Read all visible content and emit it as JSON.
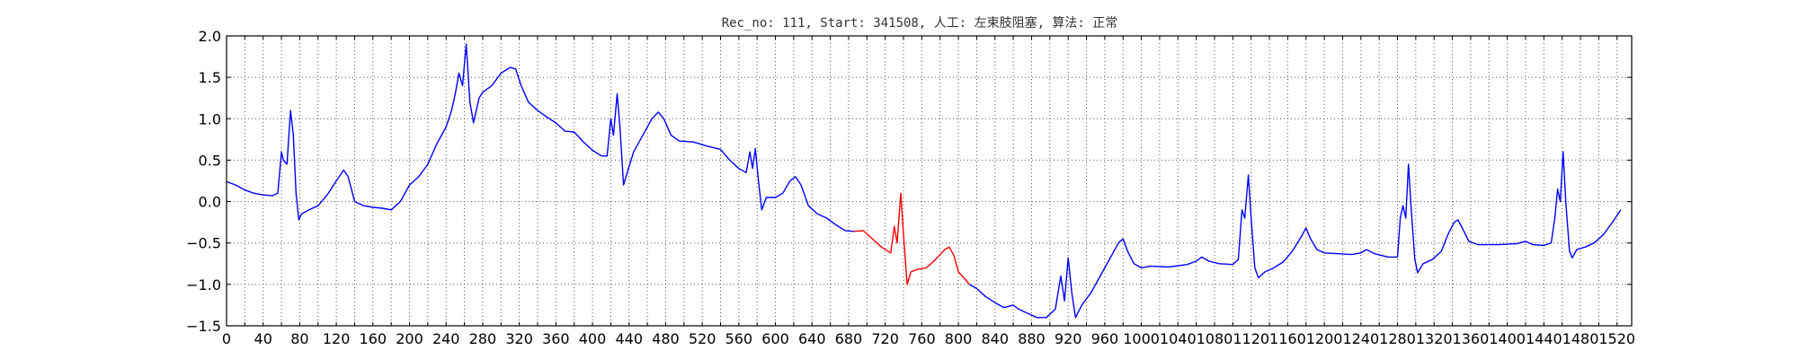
{
  "chart_data": {
    "type": "line",
    "title": "Rec_no: 111, Start: 341508, 人工: 左束肢阻塞, 算法: 正常",
    "xlabel": "",
    "ylabel": "",
    "xlim": [
      0,
      1536
    ],
    "ylim": [
      -1.5,
      2.0
    ],
    "grid": true,
    "x_tick_step": 20,
    "x_tick_label_every": 2,
    "y_ticks": [
      -1.5,
      -1.0,
      -0.5,
      0.0,
      0.5,
      1.0,
      1.5,
      2.0
    ],
    "y_tick_labels": [
      "−1.5",
      "−1.0",
      "−0.5",
      "0.0",
      "0.5",
      "1.0",
      "1.5",
      "2.0"
    ],
    "series": [
      {
        "color": "#0000ff",
        "points": [
          [
            0,
            0.24
          ],
          [
            10,
            0.2
          ],
          [
            20,
            0.14
          ],
          [
            30,
            0.1
          ],
          [
            40,
            0.08
          ],
          [
            50,
            0.07
          ],
          [
            56,
            0.1
          ],
          [
            60,
            0.6
          ],
          [
            62,
            0.5
          ],
          [
            66,
            0.45
          ],
          [
            70,
            1.1
          ],
          [
            73,
            0.8
          ],
          [
            76,
            0.1
          ],
          [
            79,
            -0.22
          ],
          [
            82,
            -0.15
          ],
          [
            90,
            -0.1
          ],
          [
            100,
            -0.05
          ],
          [
            110,
            0.08
          ],
          [
            120,
            0.25
          ],
          [
            128,
            0.38
          ],
          [
            133,
            0.3
          ],
          [
            140,
            0.0
          ],
          [
            150,
            -0.05
          ],
          [
            160,
            -0.07
          ],
          [
            170,
            -0.08
          ],
          [
            180,
            -0.1
          ],
          [
            190,
            0.0
          ],
          [
            200,
            0.2
          ],
          [
            210,
            0.3
          ],
          [
            220,
            0.45
          ],
          [
            230,
            0.7
          ],
          [
            240,
            0.9
          ],
          [
            246,
            1.1
          ],
          [
            250,
            1.3
          ],
          [
            254,
            1.55
          ],
          [
            258,
            1.4
          ],
          [
            262,
            1.9
          ],
          [
            266,
            1.2
          ],
          [
            270,
            0.95
          ],
          [
            276,
            1.25
          ],
          [
            280,
            1.32
          ],
          [
            290,
            1.4
          ],
          [
            300,
            1.55
          ],
          [
            310,
            1.62
          ],
          [
            316,
            1.6
          ],
          [
            322,
            1.4
          ],
          [
            330,
            1.2
          ],
          [
            340,
            1.1
          ],
          [
            350,
            1.02
          ],
          [
            360,
            0.95
          ],
          [
            370,
            0.85
          ],
          [
            380,
            0.84
          ],
          [
            390,
            0.72
          ],
          [
            400,
            0.62
          ],
          [
            410,
            0.55
          ],
          [
            416,
            0.55
          ],
          [
            420,
            1.0
          ],
          [
            423,
            0.8
          ],
          [
            427,
            1.3
          ],
          [
            430,
            0.9
          ],
          [
            434,
            0.2
          ],
          [
            438,
            0.35
          ],
          [
            445,
            0.6
          ],
          [
            455,
            0.8
          ],
          [
            465,
            1.0
          ],
          [
            472,
            1.08
          ],
          [
            478,
            1.0
          ],
          [
            486,
            0.8
          ],
          [
            495,
            0.73
          ],
          [
            510,
            0.72
          ],
          [
            525,
            0.67
          ],
          [
            540,
            0.63
          ],
          [
            550,
            0.5
          ],
          [
            560,
            0.4
          ],
          [
            568,
            0.35
          ],
          [
            572,
            0.6
          ],
          [
            575,
            0.4
          ],
          [
            578,
            0.64
          ],
          [
            581,
            0.3
          ],
          [
            585,
            -0.1
          ],
          [
            590,
            0.05
          ],
          [
            600,
            0.05
          ],
          [
            608,
            0.1
          ],
          [
            616,
            0.25
          ],
          [
            622,
            0.3
          ],
          [
            628,
            0.2
          ],
          [
            636,
            -0.05
          ],
          [
            646,
            -0.15
          ],
          [
            656,
            -0.2
          ],
          [
            666,
            -0.28
          ],
          [
            676,
            -0.35
          ],
          [
            686,
            -0.36
          ]
        ]
      },
      {
        "color": "#ff0000",
        "points": [
          [
            686,
            -0.36
          ],
          [
            696,
            -0.35
          ],
          [
            706,
            -0.45
          ],
          [
            716,
            -0.55
          ],
          [
            726,
            -0.62
          ],
          [
            730,
            -0.3
          ],
          [
            733,
            -0.5
          ],
          [
            737,
            0.1
          ],
          [
            740,
            -0.4
          ],
          [
            744,
            -1.0
          ],
          [
            748,
            -0.85
          ],
          [
            755,
            -0.82
          ],
          [
            765,
            -0.8
          ],
          [
            775,
            -0.7
          ],
          [
            785,
            -0.58
          ],
          [
            790,
            -0.55
          ],
          [
            795,
            -0.65
          ],
          [
            800,
            -0.85
          ],
          [
            806,
            -0.92
          ],
          [
            812,
            -1.0
          ]
        ]
      },
      {
        "color": "#0000ff",
        "points": [
          [
            812,
            -1.0
          ],
          [
            820,
            -1.05
          ],
          [
            830,
            -1.15
          ],
          [
            840,
            -1.22
          ],
          [
            850,
            -1.28
          ],
          [
            860,
            -1.25
          ],
          [
            866,
            -1.3
          ],
          [
            876,
            -1.35
          ],
          [
            886,
            -1.4
          ],
          [
            896,
            -1.4
          ],
          [
            906,
            -1.3
          ],
          [
            912,
            -0.9
          ],
          [
            916,
            -1.2
          ],
          [
            920,
            -0.68
          ],
          [
            924,
            -1.1
          ],
          [
            928,
            -1.4
          ],
          [
            935,
            -1.25
          ],
          [
            945,
            -1.1
          ],
          [
            955,
            -0.9
          ],
          [
            965,
            -0.7
          ],
          [
            975,
            -0.5
          ],
          [
            980,
            -0.45
          ],
          [
            985,
            -0.6
          ],
          [
            992,
            -0.75
          ],
          [
            1000,
            -0.8
          ],
          [
            1010,
            -0.78
          ],
          [
            1030,
            -0.79
          ],
          [
            1050,
            -0.76
          ],
          [
            1060,
            -0.72
          ],
          [
            1066,
            -0.67
          ],
          [
            1074,
            -0.72
          ],
          [
            1085,
            -0.75
          ],
          [
            1100,
            -0.76
          ],
          [
            1106,
            -0.7
          ],
          [
            1110,
            -0.1
          ],
          [
            1113,
            -0.2
          ],
          [
            1117,
            0.32
          ],
          [
            1120,
            -0.2
          ],
          [
            1124,
            -0.8
          ],
          [
            1128,
            -0.92
          ],
          [
            1135,
            -0.85
          ],
          [
            1145,
            -0.8
          ],
          [
            1155,
            -0.73
          ],
          [
            1165,
            -0.6
          ],
          [
            1175,
            -0.42
          ],
          [
            1180,
            -0.32
          ],
          [
            1185,
            -0.45
          ],
          [
            1192,
            -0.58
          ],
          [
            1200,
            -0.62
          ],
          [
            1215,
            -0.63
          ],
          [
            1230,
            -0.64
          ],
          [
            1240,
            -0.62
          ],
          [
            1246,
            -0.58
          ],
          [
            1255,
            -0.63
          ],
          [
            1270,
            -0.67
          ],
          [
            1280,
            -0.67
          ],
          [
            1283,
            -0.2
          ],
          [
            1286,
            -0.05
          ],
          [
            1289,
            -0.2
          ],
          [
            1292,
            0.45
          ],
          [
            1295,
            -0.1
          ],
          [
            1299,
            -0.7
          ],
          [
            1302,
            -0.86
          ],
          [
            1308,
            -0.75
          ],
          [
            1318,
            -0.7
          ],
          [
            1328,
            -0.6
          ],
          [
            1335,
            -0.4
          ],
          [
            1342,
            -0.25
          ],
          [
            1346,
            -0.22
          ],
          [
            1350,
            -0.3
          ],
          [
            1358,
            -0.48
          ],
          [
            1368,
            -0.52
          ],
          [
            1390,
            -0.52
          ],
          [
            1410,
            -0.51
          ],
          [
            1420,
            -0.48
          ],
          [
            1428,
            -0.52
          ],
          [
            1440,
            -0.53
          ],
          [
            1448,
            -0.5
          ],
          [
            1452,
            -0.2
          ],
          [
            1455,
            0.15
          ],
          [
            1458,
            0.0
          ],
          [
            1461,
            0.6
          ],
          [
            1464,
            0.0
          ],
          [
            1468,
            -0.6
          ],
          [
            1471,
            -0.68
          ],
          [
            1476,
            -0.58
          ],
          [
            1485,
            -0.55
          ],
          [
            1495,
            -0.5
          ],
          [
            1505,
            -0.4
          ],
          [
            1515,
            -0.25
          ],
          [
            1524,
            -0.1
          ]
        ]
      }
    ]
  }
}
